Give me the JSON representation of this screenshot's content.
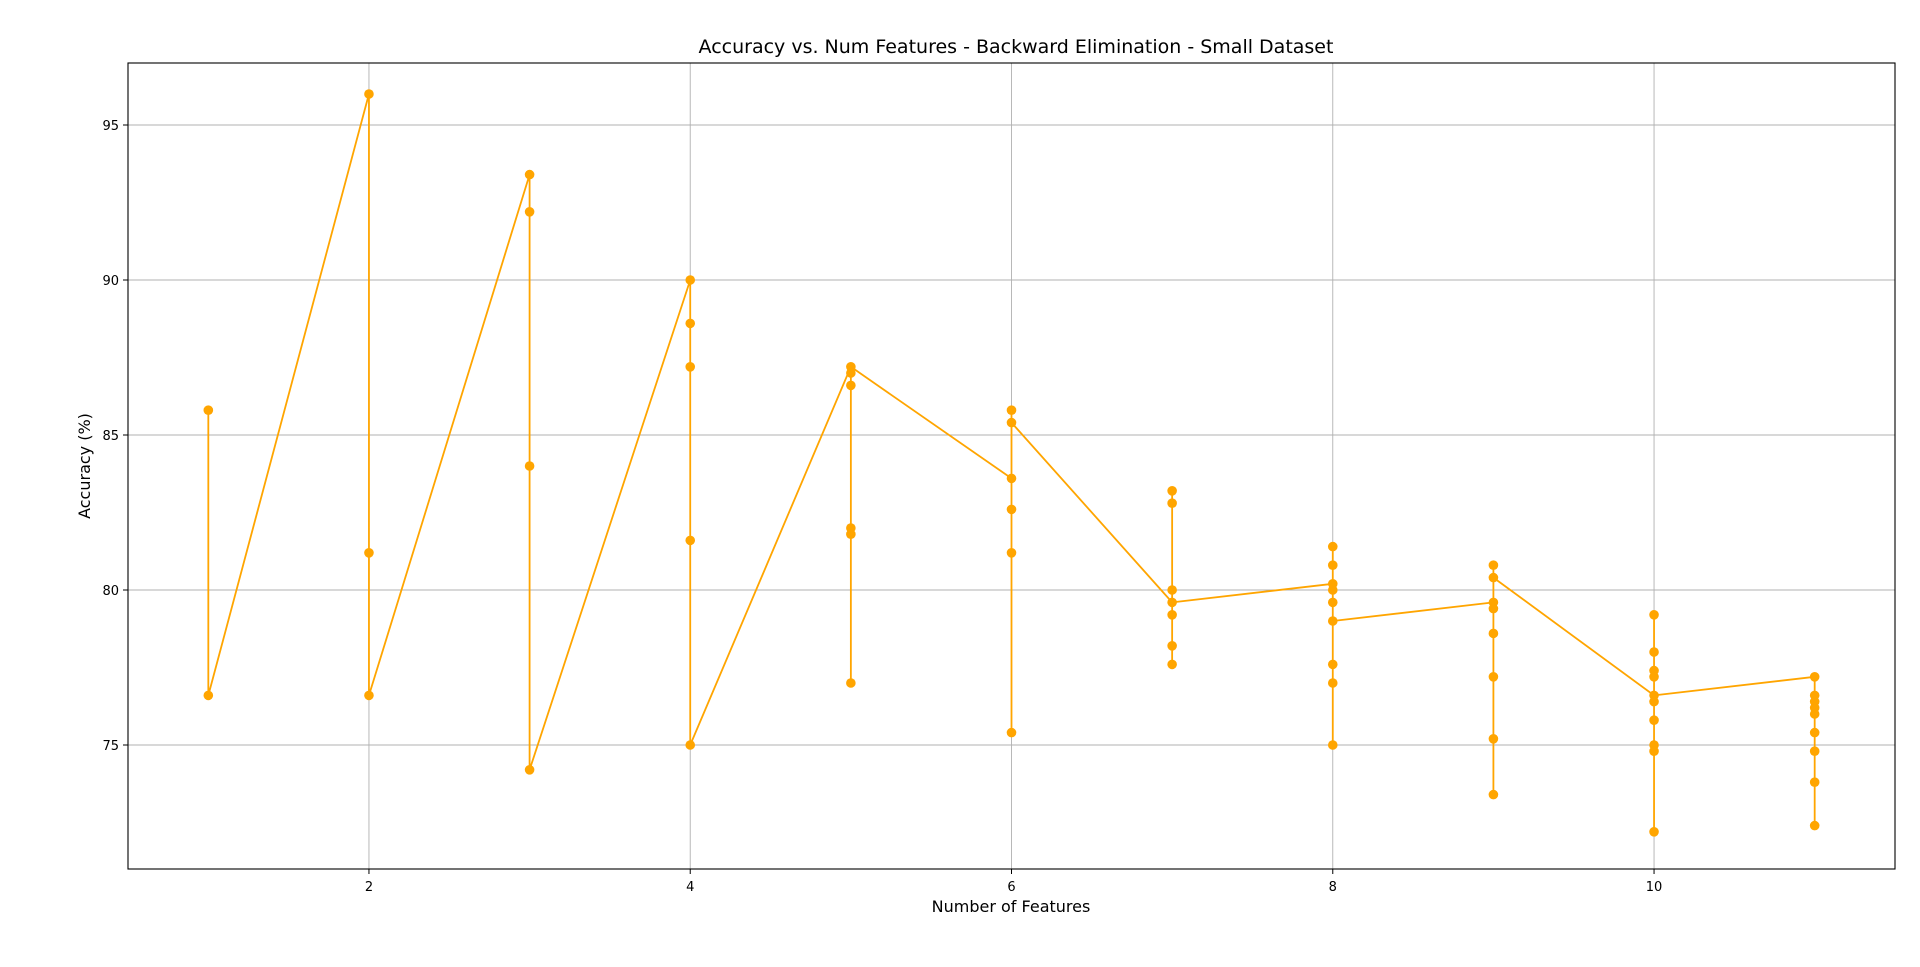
{
  "chart_data": {
    "type": "line",
    "title": "Accuracy vs. Num Features - Backward Elimination - Small Dataset",
    "xlabel": "Number of Features",
    "ylabel": "Accuracy (%)",
    "xlim": [
      0.5,
      11.5
    ],
    "ylim": [
      71,
      97
    ],
    "xticks": [
      2,
      4,
      6,
      8,
      10
    ],
    "yticks": [
      75,
      80,
      85,
      90,
      95
    ],
    "grid": true,
    "color": "#FFA500",
    "marker": "circle",
    "points": [
      {
        "x": 1,
        "y": 85.8
      },
      {
        "x": 1,
        "y": 76.6
      },
      {
        "x": 2,
        "y": 96.0
      },
      {
        "x": 2,
        "y": 81.2
      },
      {
        "x": 2,
        "y": 76.6
      },
      {
        "x": 3,
        "y": 93.4
      },
      {
        "x": 3,
        "y": 92.2
      },
      {
        "x": 3,
        "y": 84.0
      },
      {
        "x": 3,
        "y": 74.2
      },
      {
        "x": 4,
        "y": 90.0
      },
      {
        "x": 4,
        "y": 88.6
      },
      {
        "x": 4,
        "y": 87.2
      },
      {
        "x": 4,
        "y": 81.6
      },
      {
        "x": 4,
        "y": 75.0
      },
      {
        "x": 5,
        "y": 87.2
      },
      {
        "x": 5,
        "y": 87.0
      },
      {
        "x": 5,
        "y": 86.6
      },
      {
        "x": 5,
        "y": 82.0
      },
      {
        "x": 5,
        "y": 81.8
      },
      {
        "x": 5,
        "y": 77.0
      },
      {
        "x": 6,
        "y": 85.8
      },
      {
        "x": 6,
        "y": 85.4
      },
      {
        "x": 6,
        "y": 83.6
      },
      {
        "x": 6,
        "y": 82.6
      },
      {
        "x": 6,
        "y": 81.2
      },
      {
        "x": 6,
        "y": 75.4
      },
      {
        "x": 7,
        "y": 83.2
      },
      {
        "x": 7,
        "y": 82.8
      },
      {
        "x": 7,
        "y": 80.0
      },
      {
        "x": 7,
        "y": 79.6
      },
      {
        "x": 7,
        "y": 79.2
      },
      {
        "x": 7,
        "y": 78.2
      },
      {
        "x": 7,
        "y": 77.6
      },
      {
        "x": 8,
        "y": 81.4
      },
      {
        "x": 8,
        "y": 80.8
      },
      {
        "x": 8,
        "y": 80.2
      },
      {
        "x": 8,
        "y": 80.0
      },
      {
        "x": 8,
        "y": 79.6
      },
      {
        "x": 8,
        "y": 79.0
      },
      {
        "x": 8,
        "y": 77.6
      },
      {
        "x": 8,
        "y": 77.0
      },
      {
        "x": 8,
        "y": 75.0
      },
      {
        "x": 9,
        "y": 80.8
      },
      {
        "x": 9,
        "y": 80.4
      },
      {
        "x": 9,
        "y": 79.6
      },
      {
        "x": 9,
        "y": 79.4
      },
      {
        "x": 9,
        "y": 78.6
      },
      {
        "x": 9,
        "y": 77.2
      },
      {
        "x": 9,
        "y": 75.2
      },
      {
        "x": 9,
        "y": 73.4
      },
      {
        "x": 10,
        "y": 79.2
      },
      {
        "x": 10,
        "y": 78.0
      },
      {
        "x": 10,
        "y": 77.4
      },
      {
        "x": 10,
        "y": 77.2
      },
      {
        "x": 10,
        "y": 76.6
      },
      {
        "x": 10,
        "y": 76.4
      },
      {
        "x": 10,
        "y": 75.8
      },
      {
        "x": 10,
        "y": 75.0
      },
      {
        "x": 10,
        "y": 74.8
      },
      {
        "x": 10,
        "y": 72.2
      },
      {
        "x": 11,
        "y": 77.2
      },
      {
        "x": 11,
        "y": 76.6
      },
      {
        "x": 11,
        "y": 76.4
      },
      {
        "x": 11,
        "y": 76.2
      },
      {
        "x": 11,
        "y": 76.0
      },
      {
        "x": 11,
        "y": 75.4
      },
      {
        "x": 11,
        "y": 74.8
      },
      {
        "x": 11,
        "y": 73.8
      },
      {
        "x": 11,
        "y": 72.4
      }
    ],
    "line_path": [
      {
        "x": 1,
        "y": 85.8
      },
      {
        "x": 1,
        "y": 76.6
      },
      {
        "x": 2,
        "y": 96.0
      },
      {
        "x": 2,
        "y": 81.2
      },
      {
        "x": 2,
        "y": 76.6
      },
      {
        "x": 3,
        "y": 93.4
      },
      {
        "x": 3,
        "y": 92.2
      },
      {
        "x": 3,
        "y": 84.0
      },
      {
        "x": 3,
        "y": 74.2
      },
      {
        "x": 4,
        "y": 90.0
      },
      {
        "x": 4,
        "y": 88.6
      },
      {
        "x": 4,
        "y": 75.0
      },
      {
        "x": 5,
        "y": 87.2
      },
      {
        "x": 5,
        "y": 77.0
      },
      {
        "x": 5,
        "y": 87.2
      },
      {
        "x": 6,
        "y": 83.6
      },
      {
        "x": 6,
        "y": 85.8
      },
      {
        "x": 6,
        "y": 75.4
      },
      {
        "x": 6,
        "y": 85.4
      },
      {
        "x": 7,
        "y": 79.6
      },
      {
        "x": 7,
        "y": 83.2
      },
      {
        "x": 7,
        "y": 77.6
      },
      {
        "x": 7,
        "y": 79.6
      },
      {
        "x": 8,
        "y": 80.2
      },
      {
        "x": 8,
        "y": 81.4
      },
      {
        "x": 8,
        "y": 75.0
      },
      {
        "x": 8,
        "y": 79.0
      },
      {
        "x": 9,
        "y": 79.6
      },
      {
        "x": 9,
        "y": 80.8
      },
      {
        "x": 9,
        "y": 73.4
      },
      {
        "x": 9,
        "y": 80.4
      },
      {
        "x": 10,
        "y": 76.6
      },
      {
        "x": 10,
        "y": 79.2
      },
      {
        "x": 10,
        "y": 72.2
      },
      {
        "x": 10,
        "y": 76.6
      },
      {
        "x": 11,
        "y": 77.2
      },
      {
        "x": 11,
        "y": 72.4
      },
      {
        "x": 11,
        "y": 77.2
      }
    ]
  }
}
